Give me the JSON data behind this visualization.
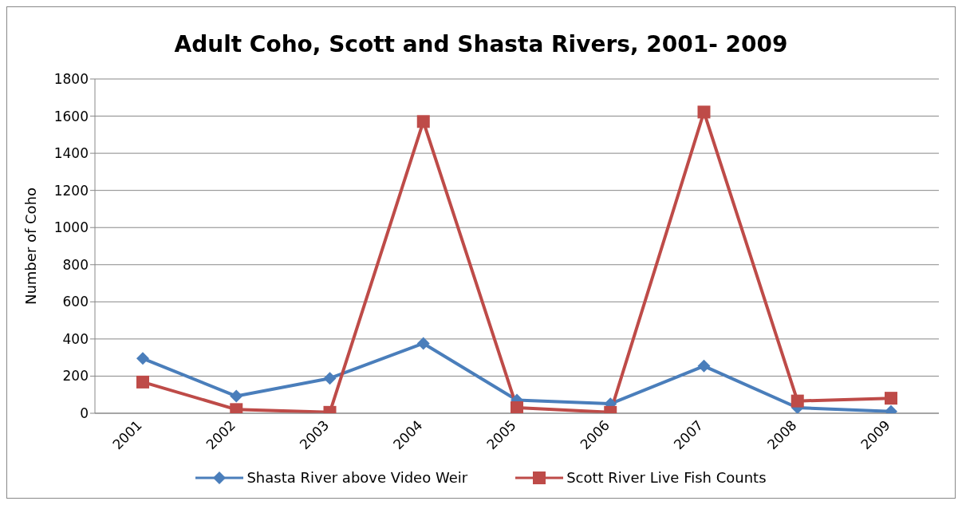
{
  "chart_data": {
    "type": "line",
    "title": "Adult Coho, Scott and Shasta Rivers, 2001- 2009",
    "ylabel": "Number of Coho",
    "categories": [
      "2001",
      "2002",
      "2003",
      "2004",
      "2005",
      "2006",
      "2007",
      "2008",
      "2009"
    ],
    "series": [
      {
        "name": "Shasta River above Video Weir",
        "color": "#4a7ebb",
        "marker": "diamond",
        "values": [
          295,
          92,
          188,
          376,
          71,
          51,
          254,
          30,
          10
        ]
      },
      {
        "name": "Scott River Live Fish Counts",
        "color": "#be4b48",
        "marker": "square",
        "values": [
          168,
          20,
          5,
          1571,
          30,
          5,
          1622,
          66,
          81
        ]
      }
    ],
    "ylim": [
      0,
      1800
    ],
    "yticks": [
      0,
      200,
      400,
      600,
      800,
      1000,
      1200,
      1400,
      1600,
      1800
    ],
    "grid": "y",
    "legend": "bottom"
  }
}
